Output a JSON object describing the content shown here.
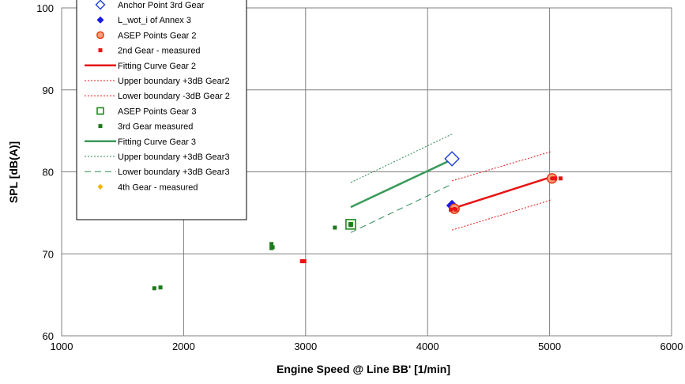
{
  "chart_data": {
    "type": "scatter",
    "xlabel": "Engine Speed @ Line BB' [1/min]",
    "ylabel": "SPL [dB(A)]",
    "xlim": [
      1000,
      6000
    ],
    "ylim": [
      60,
      100
    ],
    "x_ticks": [
      "1000",
      "2000",
      "3000",
      "4000",
      "5000",
      "6000"
    ],
    "y_ticks": [
      "60",
      "70",
      "80",
      "90",
      "100"
    ],
    "grid": true,
    "legend_position": "top-left",
    "series": [
      {
        "name": "Anchor Point 3rd Gear",
        "style": "diamond-open",
        "color": "#1f3fd6",
        "points": [
          [
            4200,
            81.6
          ]
        ]
      },
      {
        "name": "L_wot_i of Annex 3",
        "style": "diamond-filled",
        "color": "#1a1ae6",
        "points": [
          [
            4200,
            75.9
          ]
        ]
      },
      {
        "name": "ASEP Points Gear 2",
        "style": "circle-open",
        "color": "#e8320a",
        "fill": "#f4a07a",
        "points": [
          [
            4220,
            75.5
          ],
          [
            5020,
            79.2
          ]
        ]
      },
      {
        "name": "2nd Gear - measured",
        "style": "square-small",
        "color": "#e81414",
        "points": [
          [
            2970,
            69.1
          ],
          [
            2990,
            69.1
          ],
          [
            4190,
            75.4
          ],
          [
            4230,
            75.4
          ],
          [
            5040,
            79.2
          ],
          [
            5090,
            79.2
          ]
        ]
      },
      {
        "name": "Fitting Curve Gear 2",
        "style": "line-solid",
        "color": "#e81414",
        "points": [
          [
            4200,
            75.5
          ],
          [
            5020,
            79.4
          ]
        ]
      },
      {
        "name": "Upper boundary +3dB Gear2",
        "style": "line-dotted",
        "color": "#e81414",
        "points": [
          [
            4200,
            78.9
          ],
          [
            5020,
            82.5
          ]
        ]
      },
      {
        "name": "Lower boundary -3dB Gear 2",
        "style": "line-dotted",
        "color": "#e81414",
        "points": [
          [
            4200,
            72.9
          ],
          [
            5020,
            76.6
          ]
        ]
      },
      {
        "name": "ASEP Points Gear 3",
        "style": "square-open",
        "color": "#1d8a1d",
        "points": [
          [
            3370,
            73.6
          ]
        ]
      },
      {
        "name": "3rd Gear measured",
        "style": "square-small",
        "color": "#1d7a1d",
        "points": [
          [
            1760,
            65.8
          ],
          [
            1810,
            65.9
          ],
          [
            2720,
            71.2
          ],
          [
            2730,
            70.8
          ],
          [
            2720,
            70.7
          ],
          [
            3240,
            73.2
          ],
          [
            3370,
            73.5
          ]
        ]
      },
      {
        "name": "Fitting Curve Gear 3",
        "style": "line-solid",
        "color": "#3a9a5a",
        "points": [
          [
            3370,
            75.7
          ],
          [
            4200,
            81.5
          ]
        ]
      },
      {
        "name": "Upper boundary +3dB Gear3",
        "style": "line-dotted",
        "color": "#2e8b57",
        "points": [
          [
            3370,
            78.7
          ],
          [
            4200,
            84.6
          ]
        ]
      },
      {
        "name": "Lower boundary +3dB Gear3",
        "style": "line-dashed",
        "color": "#2e8b57",
        "points": [
          [
            3370,
            72.6
          ],
          [
            4200,
            78.5
          ]
        ]
      },
      {
        "name": "4th Gear - measured",
        "style": "diamond-small",
        "color": "#f0b400",
        "points": []
      }
    ]
  }
}
